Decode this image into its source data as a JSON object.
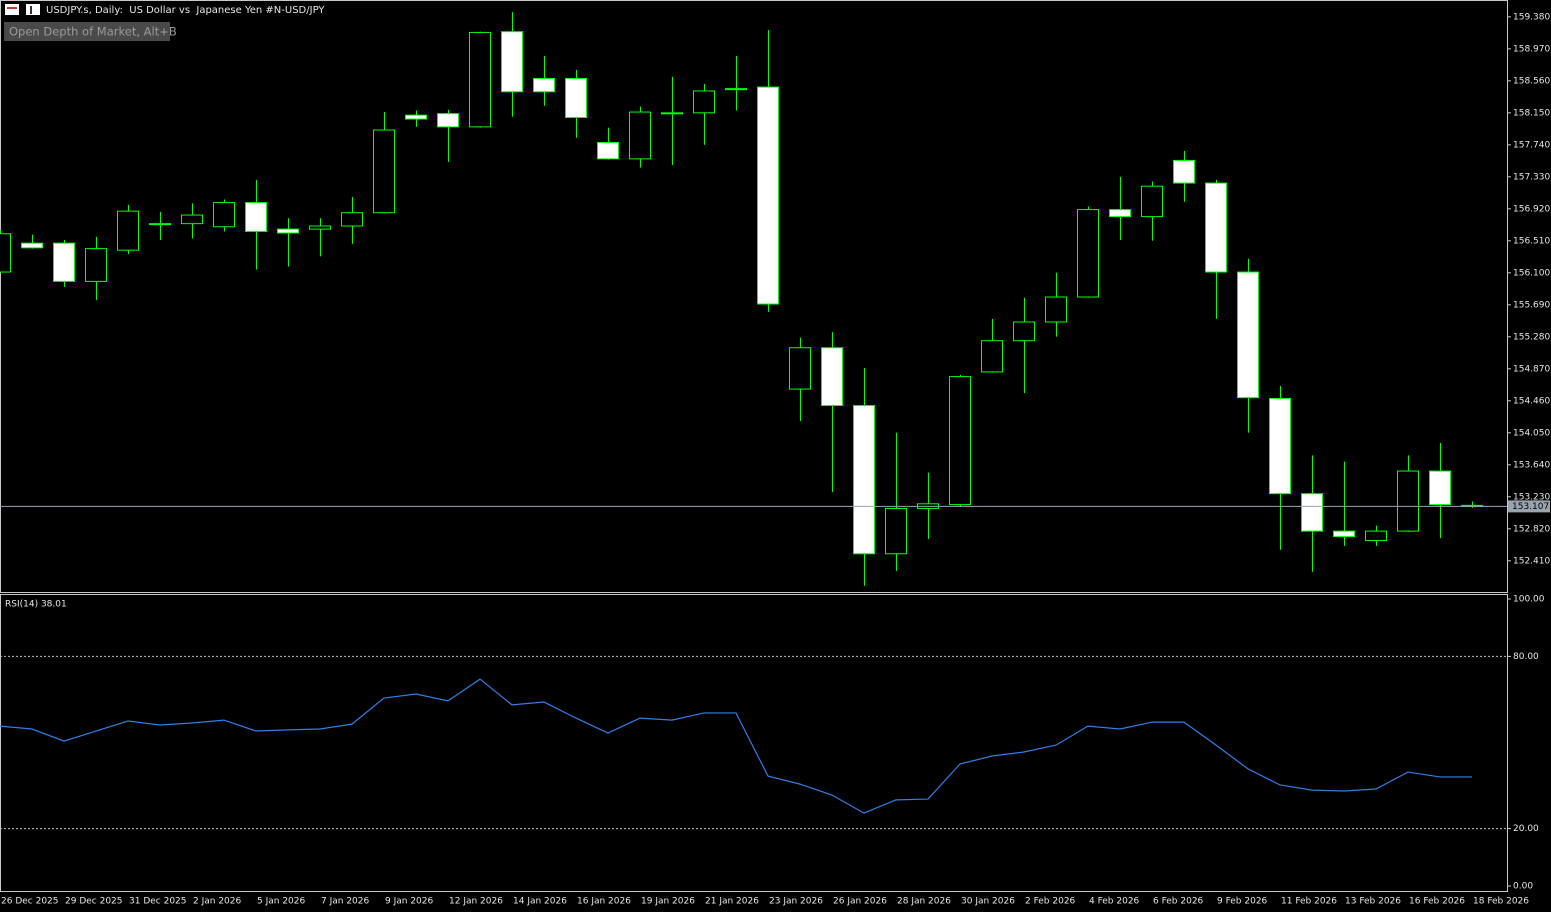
{
  "chart_data": [
    {
      "type": "candlestick",
      "title": "USDJPY.s, Daily:  US Dollar vs  Japanese Yen #N-USD/JPY",
      "button": "Open Depth of Market, Alt+B",
      "categories": [
        "26 Dec 2025",
        null,
        "29 Dec 2025",
        null,
        "31 Dec 2025",
        null,
        "2 Jan 2026",
        null,
        "5 Jan 2026",
        null,
        "7 Jan 2026",
        null,
        "9 Jan 2026",
        null,
        "12 Jan 2026",
        null,
        "14 Jan 2026",
        null,
        "16 Jan 2026",
        null,
        "19 Jan 2026",
        null,
        "21 Jan 2026",
        null,
        "23 Jan 2026",
        null,
        "26 Jan 2026",
        null,
        "28 Jan 2026",
        null,
        "30 Jan 2026",
        null,
        "2 Feb 2026",
        null,
        "4 Feb 2026",
        null,
        "6 Feb 2026",
        null,
        "9 Feb 2026",
        null,
        "11 Feb 2026",
        null,
        "13 Feb 2026",
        null,
        "16 Feb 2026",
        null,
        "18 Feb 2026"
      ],
      "open": [
        156.11,
        156.48,
        156.48,
        155.99,
        156.39,
        156.72,
        156.73,
        156.69,
        157.0,
        156.66,
        156.66,
        156.7,
        156.87,
        158.12,
        158.14,
        157.97,
        159.19,
        158.59,
        158.59,
        157.77,
        157.56,
        158.14,
        158.15,
        158.45,
        158.48,
        154.61,
        155.14,
        154.4,
        152.5,
        153.08,
        153.13,
        154.83,
        155.23,
        155.47,
        155.79,
        156.91,
        156.82,
        157.54,
        157.25,
        156.11,
        154.49,
        153.27,
        152.79,
        152.67,
        152.79,
        153.56,
        153.12
      ],
      "high": [
        156.65,
        156.59,
        156.52,
        156.56,
        156.97,
        156.88,
        156.99,
        157.04,
        157.29,
        156.8,
        156.8,
        157.07,
        158.16,
        158.18,
        158.19,
        159.19,
        159.44,
        158.88,
        158.7,
        157.96,
        158.23,
        158.61,
        158.52,
        158.88,
        159.21,
        155.27,
        155.34,
        154.88,
        154.05,
        153.54,
        154.79,
        155.51,
        155.78,
        156.1,
        156.95,
        157.33,
        157.27,
        157.66,
        157.29,
        156.28,
        154.65,
        153.76,
        153.68,
        152.86,
        153.76,
        153.92,
        153.17
      ],
      "low": [
        156.1,
        156.41,
        155.92,
        155.75,
        156.34,
        156.52,
        156.54,
        156.63,
        156.14,
        156.18,
        156.31,
        156.47,
        156.86,
        157.97,
        157.52,
        157.96,
        158.1,
        158.24,
        157.83,
        157.55,
        157.45,
        157.48,
        157.74,
        158.18,
        155.6,
        154.2,
        153.29,
        152.09,
        152.28,
        152.69,
        153.1,
        154.82,
        154.56,
        155.28,
        155.78,
        156.52,
        156.51,
        157.01,
        155.51,
        154.05,
        152.55,
        152.27,
        152.6,
        152.6,
        152.78,
        152.7,
        153.09
      ],
      "close": [
        156.6,
        156.42,
        155.99,
        156.41,
        156.89,
        156.73,
        156.84,
        157.0,
        156.63,
        156.61,
        156.7,
        156.87,
        157.93,
        158.07,
        157.97,
        159.18,
        158.42,
        158.42,
        158.09,
        157.56,
        158.16,
        158.15,
        158.43,
        158.46,
        155.7,
        155.14,
        154.4,
        152.5,
        153.08,
        153.14,
        154.77,
        155.23,
        155.47,
        155.79,
        156.91,
        156.82,
        157.21,
        157.25,
        156.11,
        154.5,
        153.27,
        152.79,
        152.72,
        152.79,
        153.56,
        153.13,
        153.11
      ],
      "up_color": "#000000",
      "down_color": "#ffffff",
      "outline_color": "#00ff00",
      "current_price": 153.107,
      "ylim": [
        152.01,
        159.57
      ],
      "yticks": [
        {
          "value": 152.41,
          "label": "152.410"
        },
        {
          "value": 152.82,
          "label": "152.820"
        },
        {
          "value": 153.23,
          "label": "153.230"
        },
        {
          "value": 153.64,
          "label": "153.640"
        },
        {
          "value": 154.05,
          "label": "154.050"
        },
        {
          "value": 154.46,
          "label": "154.460"
        },
        {
          "value": 154.87,
          "label": "154.870"
        },
        {
          "value": 155.28,
          "label": "155.280"
        },
        {
          "value": 155.69,
          "label": "155.690"
        },
        {
          "value": 156.1,
          "label": "156.100"
        },
        {
          "value": 156.51,
          "label": "156.510"
        },
        {
          "value": 156.92,
          "label": "156.920"
        },
        {
          "value": 157.33,
          "label": "157.330"
        },
        {
          "value": 157.74,
          "label": "157.740"
        },
        {
          "value": 158.15,
          "label": "158.150"
        },
        {
          "value": 158.56,
          "label": "158.560"
        },
        {
          "value": 158.97,
          "label": "158.970"
        },
        {
          "value": 159.38,
          "label": "159.380"
        }
      ],
      "grid": false
    },
    {
      "type": "line",
      "label": "RSI(14) 38.01",
      "color": "#2f7fe6",
      "values": [
        55.7,
        54.7,
        50.5,
        54.0,
        57.5,
        56.1,
        56.8,
        57.8,
        54.0,
        54.4,
        54.7,
        56.4,
        65.5,
        66.9,
        64.5,
        72.1,
        63.1,
        64.1,
        58.5,
        53.3,
        58.5,
        57.8,
        60.3,
        60.3,
        38.3,
        35.5,
        31.7,
        25.4,
        30.0,
        30.3,
        42.5,
        45.3,
        46.7,
        49.1,
        55.7,
        54.7,
        57.1,
        57.1,
        49.1,
        40.8,
        35.2,
        33.4,
        33.1,
        33.8,
        39.7,
        38.0,
        38.0
      ],
      "ylim": [
        0,
        100
      ],
      "yticks": [
        {
          "value": 0,
          "label": "0.00"
        },
        {
          "value": 20,
          "label": "20.00"
        },
        {
          "value": 80,
          "label": "80.00"
        },
        {
          "value": 100,
          "label": "100.00"
        }
      ],
      "levels": [
        20,
        80
      ],
      "grid": false
    }
  ]
}
